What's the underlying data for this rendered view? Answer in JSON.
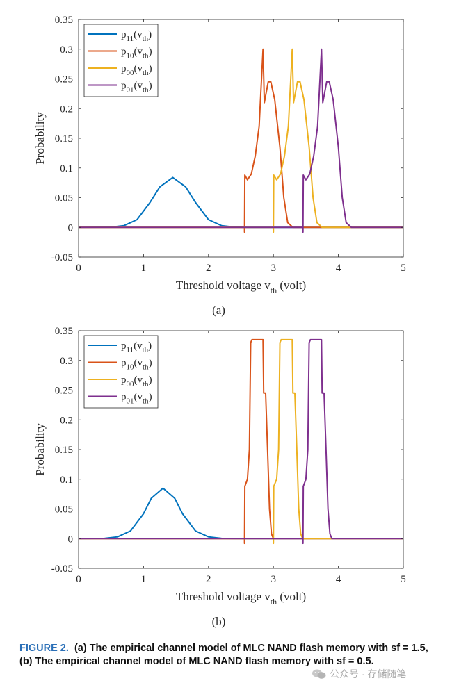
{
  "chart_data": [
    {
      "type": "line",
      "panel_label": "(a)",
      "xlabel": "Threshold voltage v",
      "xlabel_sub": "th",
      "xlabel_unit": " (volt)",
      "ylabel": "Probability",
      "xlim": [
        0,
        5
      ],
      "ylim": [
        -0.05,
        0.35
      ],
      "xticks": [
        "0",
        "1",
        "2",
        "3",
        "4",
        "5"
      ],
      "yticks": [
        "-0.05",
        "0",
        "0.05",
        "0.1",
        "0.15",
        "0.2",
        "0.25",
        "0.3",
        "0.35"
      ],
      "legend_position": "top-left",
      "series": [
        {
          "name": "p",
          "sub": "11",
          "arg": "v",
          "arg_sub": "th",
          "color": "#0072BD",
          "points": [
            [
              0,
              0
            ],
            [
              0.5,
              0.0004
            ],
            [
              0.7,
              0.003
            ],
            [
              0.9,
              0.013
            ],
            [
              1.1,
              0.042
            ],
            [
              1.25,
              0.068
            ],
            [
              1.45,
              0.084
            ],
            [
              1.65,
              0.068
            ],
            [
              1.8,
              0.042
            ],
            [
              2.0,
              0.013
            ],
            [
              2.2,
              0.003
            ],
            [
              2.4,
              0.0004
            ],
            [
              2.6,
              0
            ],
            [
              5,
              0
            ]
          ]
        },
        {
          "name": "p",
          "sub": "10",
          "arg": "v",
          "arg_sub": "th",
          "color": "#D95319",
          "points": [
            [
              0,
              0
            ],
            [
              2.555,
              0
            ],
            [
              2.555,
              -0.008
            ],
            [
              2.56,
              0.088
            ],
            [
              2.6,
              0.08
            ],
            [
              2.66,
              0.09
            ],
            [
              2.72,
              0.12
            ],
            [
              2.78,
              0.17
            ],
            [
              2.84,
              0.3
            ],
            [
              2.86,
              0.21
            ],
            [
              2.92,
              0.245
            ],
            [
              2.96,
              0.245
            ],
            [
              3.02,
              0.215
            ],
            [
              3.1,
              0.135
            ],
            [
              3.16,
              0.05
            ],
            [
              3.22,
              0.008
            ],
            [
              3.3,
              0
            ],
            [
              5,
              0
            ]
          ]
        },
        {
          "name": "p",
          "sub": "00",
          "arg": "v",
          "arg_sub": "th",
          "color": "#EDB120",
          "points": [
            [
              0,
              0
            ],
            [
              3.0,
              0
            ],
            [
              3.0,
              -0.008
            ],
            [
              3.005,
              0.088
            ],
            [
              3.05,
              0.08
            ],
            [
              3.11,
              0.09
            ],
            [
              3.17,
              0.12
            ],
            [
              3.23,
              0.17
            ],
            [
              3.29,
              0.3
            ],
            [
              3.31,
              0.21
            ],
            [
              3.37,
              0.245
            ],
            [
              3.41,
              0.245
            ],
            [
              3.47,
              0.215
            ],
            [
              3.55,
              0.135
            ],
            [
              3.61,
              0.05
            ],
            [
              3.67,
              0.008
            ],
            [
              3.75,
              0
            ],
            [
              5,
              0
            ]
          ]
        },
        {
          "name": "p",
          "sub": "01",
          "arg": "v",
          "arg_sub": "th",
          "color": "#7E2F8E",
          "points": [
            [
              0,
              0
            ],
            [
              3.455,
              0
            ],
            [
              3.455,
              -0.008
            ],
            [
              3.46,
              0.088
            ],
            [
              3.5,
              0.08
            ],
            [
              3.56,
              0.09
            ],
            [
              3.62,
              0.12
            ],
            [
              3.68,
              0.17
            ],
            [
              3.74,
              0.3
            ],
            [
              3.76,
              0.21
            ],
            [
              3.82,
              0.245
            ],
            [
              3.86,
              0.245
            ],
            [
              3.92,
              0.215
            ],
            [
              4.0,
              0.135
            ],
            [
              4.06,
              0.05
            ],
            [
              4.12,
              0.008
            ],
            [
              4.2,
              0
            ],
            [
              5,
              0
            ]
          ]
        }
      ]
    },
    {
      "type": "line",
      "panel_label": "(b)",
      "xlabel": "Threshold voltage v",
      "xlabel_sub": "th",
      "xlabel_unit": " (volt)",
      "ylabel": "Probability",
      "xlim": [
        0,
        5
      ],
      "ylim": [
        -0.05,
        0.35
      ],
      "xticks": [
        "0",
        "1",
        "2",
        "3",
        "4",
        "5"
      ],
      "yticks": [
        "-0.05",
        "0",
        "0.05",
        "0.1",
        "0.15",
        "0.2",
        "0.25",
        "0.3",
        "0.35"
      ],
      "legend_position": "top-left",
      "series": [
        {
          "name": "p",
          "sub": "11",
          "arg": "v",
          "arg_sub": "th",
          "color": "#0072BD",
          "points": [
            [
              0,
              0
            ],
            [
              0.4,
              0.0004
            ],
            [
              0.6,
              0.003
            ],
            [
              0.8,
              0.013
            ],
            [
              1.0,
              0.042
            ],
            [
              1.12,
              0.068
            ],
            [
              1.3,
              0.085
            ],
            [
              1.48,
              0.068
            ],
            [
              1.6,
              0.042
            ],
            [
              1.8,
              0.013
            ],
            [
              2.0,
              0.003
            ],
            [
              2.2,
              0.0004
            ],
            [
              2.4,
              0
            ],
            [
              5,
              0
            ]
          ]
        },
        {
          "name": "p",
          "sub": "10",
          "arg": "v",
          "arg_sub": "th",
          "color": "#D95319",
          "points": [
            [
              0,
              0
            ],
            [
              2.555,
              0
            ],
            [
              2.555,
              -0.008
            ],
            [
              2.56,
              0.088
            ],
            [
              2.6,
              0.1
            ],
            [
              2.63,
              0.15
            ],
            [
              2.65,
              0.33
            ],
            [
              2.67,
              0.335
            ],
            [
              2.84,
              0.335
            ],
            [
              2.85,
              0.245
            ],
            [
              2.88,
              0.245
            ],
            [
              2.91,
              0.15
            ],
            [
              2.94,
              0.05
            ],
            [
              2.97,
              0.008
            ],
            [
              3.0,
              0
            ],
            [
              5,
              0
            ]
          ]
        },
        {
          "name": "p",
          "sub": "00",
          "arg": "v",
          "arg_sub": "th",
          "color": "#EDB120",
          "points": [
            [
              0,
              0
            ],
            [
              3.0,
              0
            ],
            [
              3.0,
              -0.008
            ],
            [
              3.005,
              0.088
            ],
            [
              3.05,
              0.1
            ],
            [
              3.08,
              0.15
            ],
            [
              3.1,
              0.33
            ],
            [
              3.12,
              0.335
            ],
            [
              3.29,
              0.335
            ],
            [
              3.3,
              0.245
            ],
            [
              3.33,
              0.245
            ],
            [
              3.36,
              0.15
            ],
            [
              3.39,
              0.05
            ],
            [
              3.42,
              0.008
            ],
            [
              3.45,
              0
            ],
            [
              5,
              0
            ]
          ]
        },
        {
          "name": "p",
          "sub": "01",
          "arg": "v",
          "arg_sub": "th",
          "color": "#7E2F8E",
          "points": [
            [
              0,
              0
            ],
            [
              3.455,
              0
            ],
            [
              3.455,
              -0.008
            ],
            [
              3.46,
              0.088
            ],
            [
              3.5,
              0.1
            ],
            [
              3.53,
              0.15
            ],
            [
              3.55,
              0.33
            ],
            [
              3.57,
              0.335
            ],
            [
              3.74,
              0.335
            ],
            [
              3.75,
              0.245
            ],
            [
              3.78,
              0.245
            ],
            [
              3.81,
              0.15
            ],
            [
              3.84,
              0.05
            ],
            [
              3.87,
              0.008
            ],
            [
              3.9,
              0
            ],
            [
              5,
              0
            ]
          ]
        }
      ]
    }
  ],
  "caption": {
    "label": "FIGURE 2.",
    "text": "(a) The empirical channel model of MLC NAND flash memory with sf = 1.5, (b) The empirical channel model of MLC NAND flash memory with sf = 0.5."
  },
  "watermark": {
    "text": "公众号 · 存储随笔",
    "icon": "wechat-icon"
  }
}
